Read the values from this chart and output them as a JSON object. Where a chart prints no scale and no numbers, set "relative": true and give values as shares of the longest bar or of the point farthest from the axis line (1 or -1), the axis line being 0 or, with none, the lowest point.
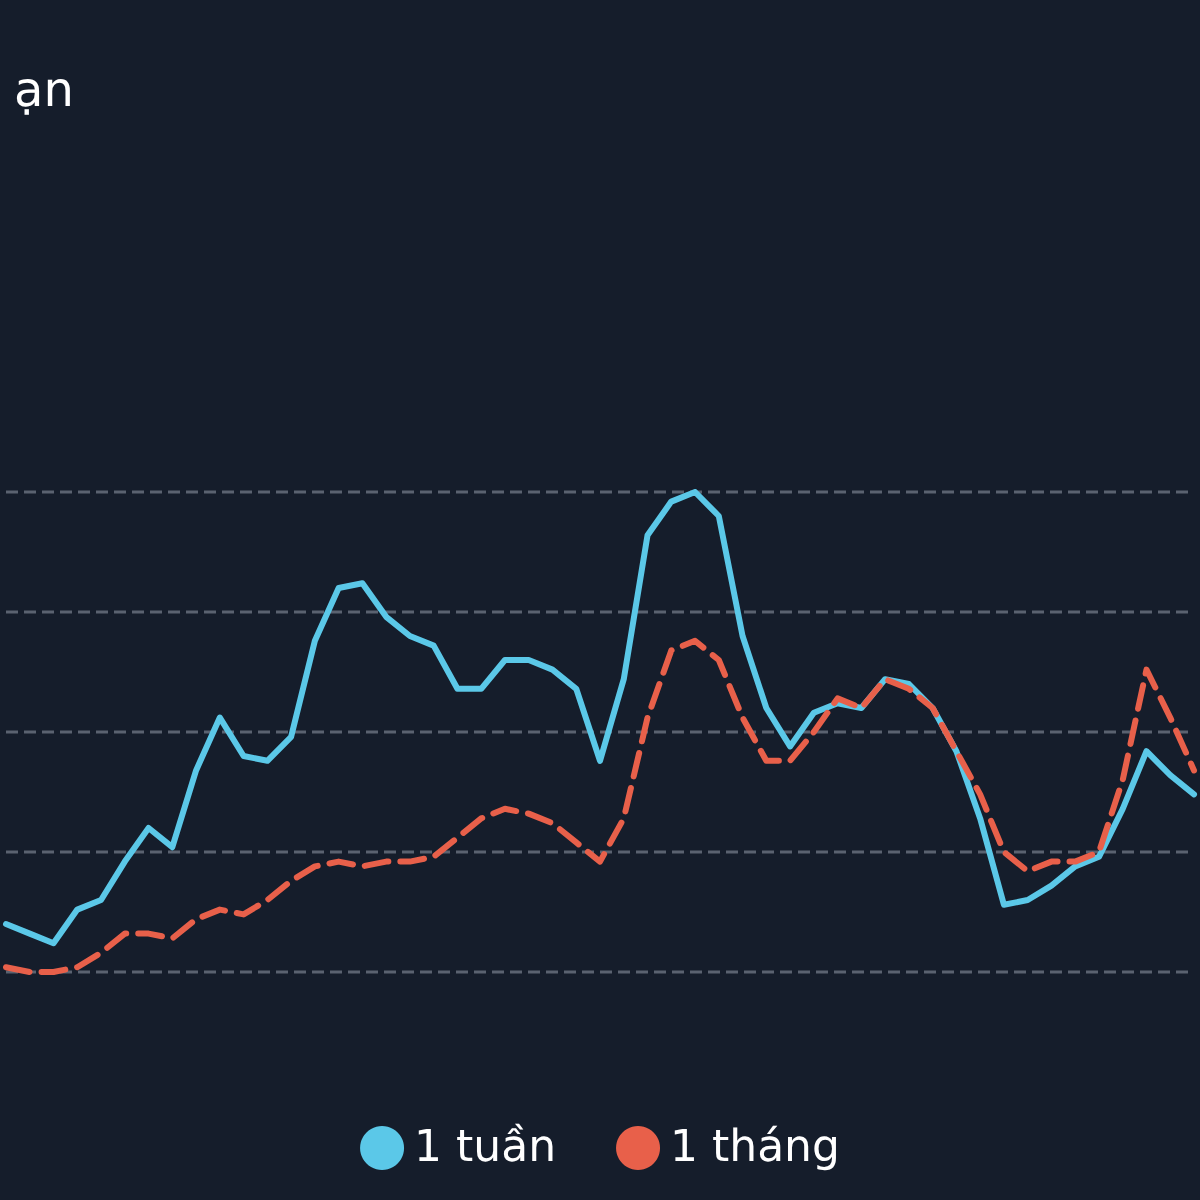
{
  "chart_data": {
    "type": "line",
    "title": "ạn",
    "relative": true,
    "grid": "y",
    "legend": "bottom",
    "marker": "none",
    "categories": [
      null,
      null,
      null,
      null,
      null,
      null,
      null,
      null,
      null,
      null,
      null,
      null,
      null,
      null,
      null,
      null,
      null,
      null,
      null,
      null,
      null,
      null,
      null,
      null,
      null,
      null,
      null,
      null,
      null,
      null,
      null,
      null,
      null,
      null,
      null,
      null,
      null,
      null,
      null,
      null,
      null,
      null,
      null,
      null,
      null,
      null,
      null,
      null,
      null,
      null,
      null
    ],
    "series": [
      {
        "name": "1 tuần",
        "color": "#5bc8e8",
        "line_style": "solid",
        "values": [
          0.1,
          0.08,
          0.06,
          0.13,
          0.15,
          0.23,
          0.3,
          0.26,
          0.42,
          0.53,
          0.45,
          0.44,
          0.49,
          0.69,
          0.8,
          0.81,
          0.74,
          0.7,
          0.68,
          0.59,
          0.59,
          0.65,
          0.65,
          0.63,
          0.59,
          0.44,
          0.61,
          0.91,
          0.98,
          1.0,
          0.95,
          0.7,
          0.55,
          0.47,
          0.54,
          0.56,
          0.55,
          0.61,
          0.6,
          0.55,
          0.46,
          0.32,
          0.14,
          0.15,
          0.18,
          0.22,
          0.24,
          0.34,
          0.46,
          0.41,
          0.37
        ]
      },
      {
        "name": "1 tháng",
        "color": "#e8604a",
        "line_style": "dashed",
        "values": [
          0.01,
          0,
          0,
          0.01,
          0.04,
          0.08,
          0.08,
          0.07,
          0.11,
          0.13,
          0.12,
          0.15,
          0.19,
          0.22,
          0.23,
          0.22,
          0.23,
          0.23,
          0.24,
          0.28,
          0.32,
          0.34,
          0.33,
          0.31,
          0.27,
          0.23,
          0.32,
          0.53,
          0.67,
          0.69,
          0.65,
          0.53,
          0.44,
          0.44,
          0.5,
          0.57,
          0.55,
          0.61,
          0.59,
          0.55,
          0.46,
          0.37,
          0.25,
          0.21,
          0.23,
          0.23,
          0.25,
          0.4,
          0.63,
          0.53,
          0.42
        ]
      }
    ]
  }
}
